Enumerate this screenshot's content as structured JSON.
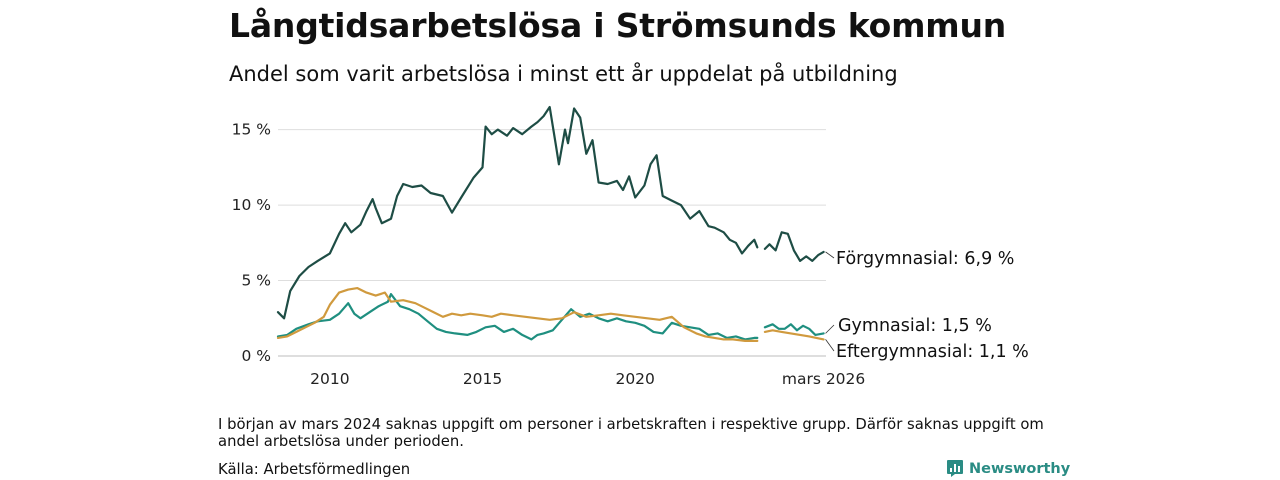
{
  "chart_data": {
    "type": "line",
    "title": "Långtidsarbetslösa i Strömsunds kommun",
    "subtitle": "Andel som varit arbetslösa i minst ett år uppdelat på utbildning",
    "xlabel": "",
    "ylabel": "",
    "xlim": [
      2008.3,
      2026.25
    ],
    "ylim": [
      0,
      16.5
    ],
    "grid": true,
    "y_ticks": [
      {
        "value": 0,
        "label": "0 %"
      },
      {
        "value": 5,
        "label": "5 %"
      },
      {
        "value": 10,
        "label": "10 %"
      },
      {
        "value": 15,
        "label": "15 %"
      }
    ],
    "x_ticks": [
      {
        "value": 2010,
        "label": "2010"
      },
      {
        "value": 2015,
        "label": "2015"
      },
      {
        "value": 2020,
        "label": "2020"
      },
      {
        "value": 2026.17,
        "label": "mars 2026"
      }
    ],
    "gap": [
      2024.1,
      2024.25
    ],
    "series": [
      {
        "name": "Förgymnasial",
        "end_label": "Förgymnasial: 6,9 %",
        "color": "#1e4d45",
        "points": [
          [
            2008.3,
            2.9
          ],
          [
            2008.5,
            2.5
          ],
          [
            2008.7,
            4.3
          ],
          [
            2009.0,
            5.3
          ],
          [
            2009.3,
            5.9
          ],
          [
            2009.6,
            6.3
          ],
          [
            2010.0,
            6.8
          ],
          [
            2010.3,
            8.1
          ],
          [
            2010.5,
            8.8
          ],
          [
            2010.7,
            8.2
          ],
          [
            2011.0,
            8.7
          ],
          [
            2011.2,
            9.6
          ],
          [
            2011.4,
            10.4
          ],
          [
            2011.5,
            9.8
          ],
          [
            2011.7,
            8.8
          ],
          [
            2012.0,
            9.1
          ],
          [
            2012.2,
            10.6
          ],
          [
            2012.4,
            11.4
          ],
          [
            2012.7,
            11.2
          ],
          [
            2013.0,
            11.3
          ],
          [
            2013.3,
            10.8
          ],
          [
            2013.7,
            10.6
          ],
          [
            2014.0,
            9.5
          ],
          [
            2014.3,
            10.5
          ],
          [
            2014.7,
            11.8
          ],
          [
            2015.0,
            12.5
          ],
          [
            2015.1,
            15.2
          ],
          [
            2015.3,
            14.7
          ],
          [
            2015.5,
            15.0
          ],
          [
            2015.8,
            14.6
          ],
          [
            2016.0,
            15.1
          ],
          [
            2016.3,
            14.7
          ],
          [
            2016.6,
            15.2
          ],
          [
            2016.8,
            15.5
          ],
          [
            2017.0,
            15.9
          ],
          [
            2017.2,
            16.5
          ],
          [
            2017.4,
            14.0
          ],
          [
            2017.5,
            12.7
          ],
          [
            2017.7,
            15.0
          ],
          [
            2017.8,
            14.1
          ],
          [
            2018.0,
            16.4
          ],
          [
            2018.2,
            15.8
          ],
          [
            2018.4,
            13.4
          ],
          [
            2018.6,
            14.3
          ],
          [
            2018.8,
            11.5
          ],
          [
            2019.1,
            11.4
          ],
          [
            2019.4,
            11.6
          ],
          [
            2019.6,
            11.0
          ],
          [
            2019.8,
            11.9
          ],
          [
            2020.0,
            10.5
          ],
          [
            2020.3,
            11.3
          ],
          [
            2020.5,
            12.7
          ],
          [
            2020.7,
            13.3
          ],
          [
            2020.9,
            10.6
          ],
          [
            2021.2,
            10.3
          ],
          [
            2021.5,
            10.0
          ],
          [
            2021.8,
            9.1
          ],
          [
            2022.1,
            9.6
          ],
          [
            2022.4,
            8.6
          ],
          [
            2022.6,
            8.5
          ],
          [
            2022.9,
            8.2
          ],
          [
            2023.1,
            7.7
          ],
          [
            2023.3,
            7.5
          ],
          [
            2023.5,
            6.8
          ],
          [
            2023.7,
            7.3
          ],
          [
            2023.9,
            7.7
          ],
          [
            2024.0,
            7.2
          ],
          [
            null,
            null
          ],
          [
            2024.25,
            7.1
          ],
          [
            2024.4,
            7.4
          ],
          [
            2024.6,
            7.0
          ],
          [
            2024.8,
            8.2
          ],
          [
            2025.0,
            8.1
          ],
          [
            2025.2,
            7.0
          ],
          [
            2025.4,
            6.3
          ],
          [
            2025.6,
            6.6
          ],
          [
            2025.8,
            6.3
          ],
          [
            2026.0,
            6.7
          ],
          [
            2026.17,
            6.9
          ]
        ]
      },
      {
        "name": "Gymnasial",
        "end_label": "Gymnasial: 1,5 %",
        "color": "#1f8f80",
        "points": [
          [
            2008.3,
            1.3
          ],
          [
            2008.6,
            1.4
          ],
          [
            2008.9,
            1.8
          ],
          [
            2009.3,
            2.1
          ],
          [
            2009.6,
            2.3
          ],
          [
            2010.0,
            2.4
          ],
          [
            2010.3,
            2.8
          ],
          [
            2010.6,
            3.5
          ],
          [
            2010.8,
            2.8
          ],
          [
            2011.0,
            2.5
          ],
          [
            2011.3,
            2.9
          ],
          [
            2011.6,
            3.3
          ],
          [
            2011.9,
            3.6
          ],
          [
            2012.0,
            4.1
          ],
          [
            2012.3,
            3.3
          ],
          [
            2012.6,
            3.1
          ],
          [
            2012.9,
            2.8
          ],
          [
            2013.2,
            2.3
          ],
          [
            2013.5,
            1.8
          ],
          [
            2013.8,
            1.6
          ],
          [
            2014.1,
            1.5
          ],
          [
            2014.5,
            1.4
          ],
          [
            2014.8,
            1.6
          ],
          [
            2015.1,
            1.9
          ],
          [
            2015.4,
            2.0
          ],
          [
            2015.7,
            1.6
          ],
          [
            2016.0,
            1.8
          ],
          [
            2016.3,
            1.4
          ],
          [
            2016.6,
            1.1
          ],
          [
            2016.8,
            1.4
          ],
          [
            2017.0,
            1.5
          ],
          [
            2017.3,
            1.7
          ],
          [
            2017.6,
            2.4
          ],
          [
            2017.9,
            3.1
          ],
          [
            2018.2,
            2.6
          ],
          [
            2018.5,
            2.8
          ],
          [
            2018.8,
            2.5
          ],
          [
            2019.1,
            2.3
          ],
          [
            2019.4,
            2.5
          ],
          [
            2019.7,
            2.3
          ],
          [
            2020.0,
            2.2
          ],
          [
            2020.3,
            2.0
          ],
          [
            2020.6,
            1.6
          ],
          [
            2020.9,
            1.5
          ],
          [
            2021.2,
            2.2
          ],
          [
            2021.5,
            2.0
          ],
          [
            2021.8,
            1.9
          ],
          [
            2022.1,
            1.8
          ],
          [
            2022.4,
            1.4
          ],
          [
            2022.7,
            1.5
          ],
          [
            2023.0,
            1.2
          ],
          [
            2023.3,
            1.3
          ],
          [
            2023.6,
            1.1
          ],
          [
            2023.9,
            1.2
          ],
          [
            2024.0,
            1.2
          ],
          [
            null,
            null
          ],
          [
            2024.25,
            1.9
          ],
          [
            2024.5,
            2.1
          ],
          [
            2024.7,
            1.8
          ],
          [
            2024.9,
            1.8
          ],
          [
            2025.1,
            2.1
          ],
          [
            2025.3,
            1.7
          ],
          [
            2025.5,
            2.0
          ],
          [
            2025.7,
            1.8
          ],
          [
            2025.9,
            1.4
          ],
          [
            2026.17,
            1.5
          ]
        ]
      },
      {
        "name": "Eftergymnasial",
        "end_label": "Eftergymnasial: 1,1 %",
        "color": "#d09a3e",
        "points": [
          [
            2008.3,
            1.2
          ],
          [
            2008.6,
            1.3
          ],
          [
            2008.9,
            1.6
          ],
          [
            2009.2,
            1.9
          ],
          [
            2009.5,
            2.2
          ],
          [
            2009.8,
            2.6
          ],
          [
            2010.0,
            3.4
          ],
          [
            2010.3,
            4.2
          ],
          [
            2010.6,
            4.4
          ],
          [
            2010.9,
            4.5
          ],
          [
            2011.2,
            4.2
          ],
          [
            2011.5,
            4.0
          ],
          [
            2011.8,
            4.2
          ],
          [
            2012.0,
            3.6
          ],
          [
            2012.4,
            3.7
          ],
          [
            2012.8,
            3.5
          ],
          [
            2013.1,
            3.2
          ],
          [
            2013.4,
            2.9
          ],
          [
            2013.7,
            2.6
          ],
          [
            2014.0,
            2.8
          ],
          [
            2014.3,
            2.7
          ],
          [
            2014.6,
            2.8
          ],
          [
            2015.0,
            2.7
          ],
          [
            2015.3,
            2.6
          ],
          [
            2015.6,
            2.8
          ],
          [
            2016.0,
            2.7
          ],
          [
            2016.4,
            2.6
          ],
          [
            2016.8,
            2.5
          ],
          [
            2017.2,
            2.4
          ],
          [
            2017.6,
            2.5
          ],
          [
            2018.0,
            2.9
          ],
          [
            2018.4,
            2.6
          ],
          [
            2018.8,
            2.7
          ],
          [
            2019.2,
            2.8
          ],
          [
            2019.6,
            2.7
          ],
          [
            2020.0,
            2.6
          ],
          [
            2020.4,
            2.5
          ],
          [
            2020.8,
            2.4
          ],
          [
            2021.2,
            2.6
          ],
          [
            2021.6,
            1.9
          ],
          [
            2022.0,
            1.5
          ],
          [
            2022.3,
            1.3
          ],
          [
            2022.6,
            1.2
          ],
          [
            2022.9,
            1.1
          ],
          [
            2023.2,
            1.1
          ],
          [
            2023.6,
            1.0
          ],
          [
            2024.0,
            1.0
          ],
          [
            null,
            null
          ],
          [
            2024.25,
            1.6
          ],
          [
            2024.5,
            1.7
          ],
          [
            2024.8,
            1.6
          ],
          [
            2025.1,
            1.5
          ],
          [
            2025.4,
            1.4
          ],
          [
            2025.7,
            1.3
          ],
          [
            2026.17,
            1.1
          ]
        ]
      }
    ]
  },
  "note": "I början av mars 2024 saknas uppgift om personer i arbetskraften i respektive grupp. Därför saknas uppgift om andel arbetslösa under perioden.",
  "source": "Källa: Arbetsförmedlingen",
  "brand": {
    "name": "Newsworthy",
    "icon": "bar-chart-logo-icon",
    "color": "#2a8c84"
  }
}
